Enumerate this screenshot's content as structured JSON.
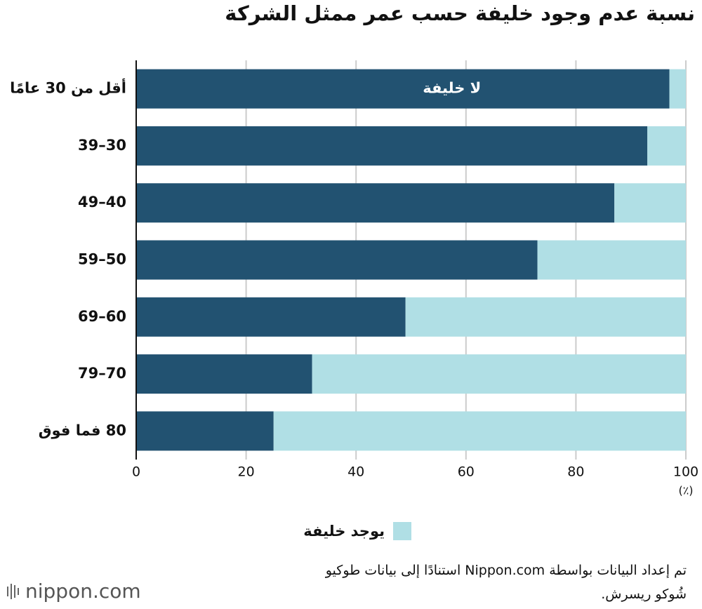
{
  "chart_data": {
    "type": "stacked-barh",
    "title": "نسبة عدم وجود خليفة حسب عمر ممثل الشركة",
    "categories": [
      "أقل من 30 عامًا",
      "30–39",
      "40–49",
      "50–59",
      "60–69",
      "70–79",
      "80 فما فوق"
    ],
    "series": [
      {
        "name": "لا خليفة",
        "color": "#225271",
        "values": [
          97,
          93,
          87,
          73,
          49,
          32,
          25
        ]
      },
      {
        "name": "يوجد خليفة",
        "color": "#b0dfe5",
        "values": [
          3,
          7,
          13,
          27,
          51,
          68,
          75
        ]
      }
    ],
    "xlim": [
      0,
      100
    ],
    "xticks": [
      0,
      20,
      40,
      60,
      80,
      100
    ],
    "x_unit": "(٪)",
    "grid": true,
    "source": "تم إعداد البيانات بواسطة Nippon.com استنادًا إلى بيانات طوكيو شُوكو ريسرش.",
    "logo": "nippon.com"
  }
}
